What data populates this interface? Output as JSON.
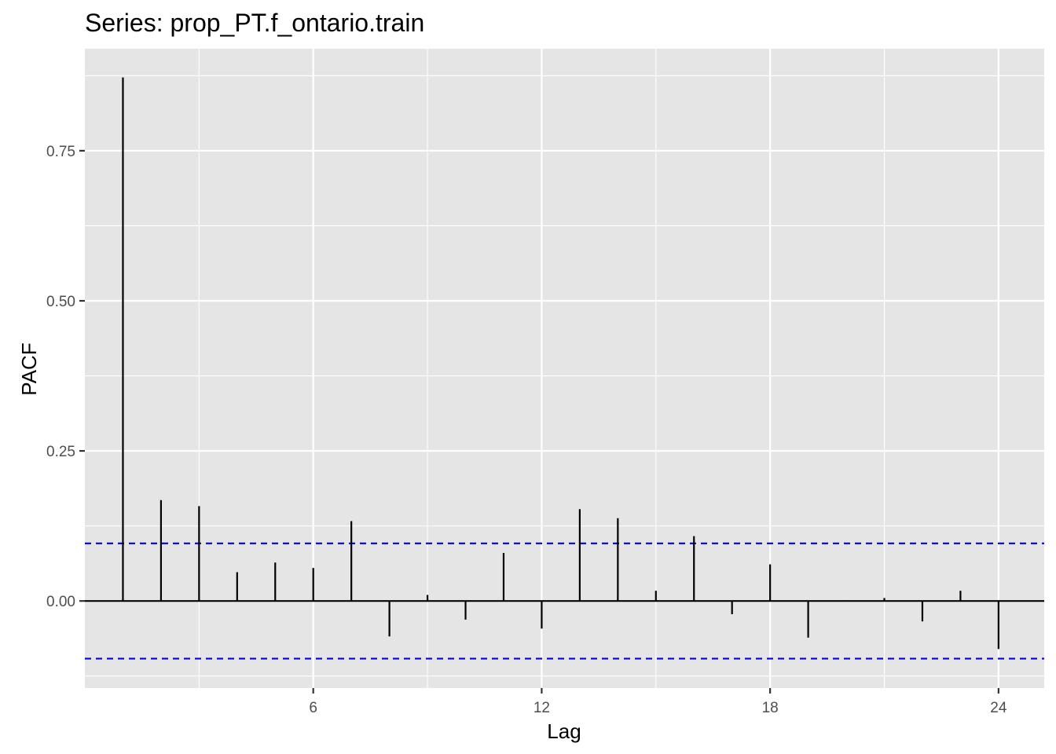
{
  "chart_data": {
    "type": "bar",
    "title": "Series: prop_PT.f_ontario.train",
    "xlabel": "Lag",
    "ylabel": "PACF",
    "x_ticks": [
      6,
      12,
      18,
      24
    ],
    "x_tick_labels": [
      "6",
      "12",
      "18",
      "24"
    ],
    "y_ticks": [
      0.0,
      0.25,
      0.5,
      0.75
    ],
    "y_tick_labels": [
      "0.00",
      "0.25",
      "0.50",
      "0.75"
    ],
    "xlim": [
      0.0,
      25.2
    ],
    "ylim": [
      -0.145,
      0.92
    ],
    "grid": true,
    "colors": {
      "panel": "#e5e5e5",
      "grid": "#ffffff",
      "spike": "#000000",
      "confidence": "#0000ee"
    },
    "confidence_bound": 0.096,
    "lags": [
      1,
      2,
      3,
      4,
      5,
      6,
      7,
      8,
      9,
      10,
      11,
      12,
      13,
      14,
      15,
      16,
      17,
      18,
      19,
      20,
      21,
      22,
      23,
      24
    ],
    "values": [
      0.872,
      0.168,
      0.158,
      0.048,
      0.064,
      0.055,
      0.133,
      -0.059,
      0.01,
      -0.031,
      0.08,
      -0.046,
      0.153,
      0.138,
      0.017,
      0.108,
      -0.022,
      0.061,
      -0.061,
      0.001,
      0.005,
      -0.034,
      0.017,
      -0.08
    ]
  }
}
